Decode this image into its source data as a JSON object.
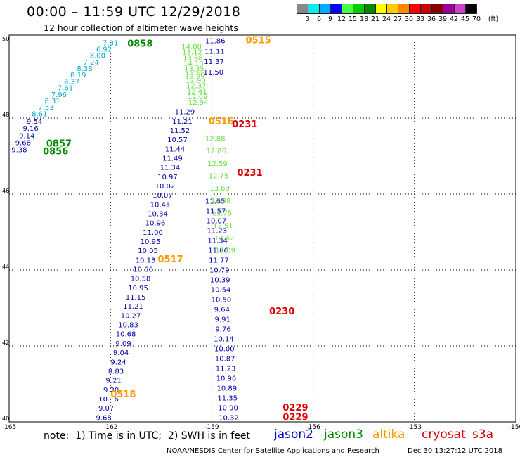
{
  "header": {
    "title": "00:00 – 11:59 UTC 12/29/2018",
    "subtitle": "12 hour collection of altimeter wave heights"
  },
  "colorbar": {
    "colors": [
      "#888888",
      "#00eeee",
      "#00aaff",
      "#0000ff",
      "#44ff44",
      "#00cc00",
      "#008800",
      "#ffff00",
      "#ffcc00",
      "#ff8800",
      "#ff0000",
      "#cc0000",
      "#880000",
      "#990099",
      "#cc44cc",
      "#000000"
    ],
    "labels": [
      "3",
      "6",
      "9",
      "12",
      "15",
      "18",
      "21",
      "24",
      "27",
      "30",
      "33",
      "36",
      "39",
      "42",
      "45",
      "70",
      "(ft)"
    ]
  },
  "axes": {
    "lon_range": [
      -165,
      -150
    ],
    "lat_range": [
      40,
      50
    ],
    "x_ticks": [
      -165,
      -162,
      -159,
      -156,
      -153,
      -150
    ],
    "y_ticks": [
      40,
      42,
      44,
      46,
      48,
      50
    ],
    "x_tick_labels": [
      "-165",
      "-162",
      "-159",
      "-156",
      "-153",
      "-150"
    ],
    "y_tick_labels": [
      "40",
      "42",
      "44",
      "46",
      "48",
      "50"
    ],
    "grid": true
  },
  "colors": {
    "jason2": "#0000aa",
    "jason3": "#008800",
    "altika": "#ff9900",
    "cryosat": "#dd0000",
    "s3a": "#cc0000",
    "wave_cyan": "#00aacc",
    "wave_light_green": "#66dd44"
  },
  "chart_data": {
    "type": "map",
    "rendering_note": "Wave height labels drawn at approximate lon/lat along satellite tracks",
    "tracks": [
      {
        "sat": "jason2",
        "color": "wave_cyan",
        "values": [
          "7.31",
          "6.92",
          "8.00",
          "7.24",
          "8.38",
          "8.19",
          "8.37",
          "7.61",
          "7.96",
          "8.31",
          "7.53",
          "8.61"
        ],
        "start": [
          -162.0,
          49.92
        ],
        "end": [
          -164.1,
          48.05
        ]
      },
      {
        "sat": "jason2",
        "color": "jason2",
        "values": [
          "9.54",
          "9.16",
          "9.14",
          "9.68",
          "9.38"
        ],
        "start": [
          -164.25,
          47.85
        ],
        "end": [
          -164.7,
          47.1
        ]
      },
      {
        "sat": "jason2",
        "color": "jason2",
        "values": [
          "11.29",
          "11.21",
          "11.52",
          "10.57",
          "11.44",
          "11.49",
          "11.34",
          "10.97",
          "10.02",
          "10.07",
          "10.45",
          "10.34",
          "10.96",
          "11.00",
          "10.95",
          "10.05",
          "10.13",
          "10.66",
          "10.58",
          "10.95",
          "11.15",
          "11.21",
          "10.27",
          "10.83",
          "10.68",
          "9.09",
          "9.04",
          "9.24",
          "8.83",
          "9.21",
          "9.20",
          "10.16",
          "9.07",
          "9.68"
        ],
        "start": [
          -159.8,
          48.1
        ],
        "end": [
          -162.2,
          40.05
        ]
      },
      {
        "sat": "jason2",
        "color": "jason2",
        "values": [
          "11.86",
          "11.11",
          "11.37",
          "11.50"
        ],
        "start": [
          -158.9,
          49.97
        ],
        "end": [
          -158.95,
          49.15
        ]
      },
      {
        "sat": "jason2",
        "color": "jason2",
        "values": [
          "11.65",
          "11.57",
          "10.07",
          "11.23",
          "11.34",
          "11.86",
          "11.77",
          "10.79",
          "10.39",
          "10.54",
          "10.50",
          "9.64",
          "9.91",
          "9.76",
          "10.14",
          "10.00",
          "10.87",
          "11.23",
          "10.96",
          "10.89",
          "11.35",
          "10.90",
          "10.32"
        ],
        "start": [
          -158.9,
          45.75
        ],
        "end": [
          -158.5,
          40.05
        ]
      },
      {
        "sat": "jason3",
        "color": "wave_light_green",
        "values": [
          "14.00",
          "13.12",
          "13.88",
          "14.13",
          "13.35",
          "13.60",
          "12.90",
          "12.37",
          "12.41",
          "12.09",
          "12.94"
        ],
        "start": [
          -159.6,
          49.82
        ],
        "end": [
          -159.4,
          48.35
        ]
      },
      {
        "sat": "jason3",
        "color": "wave_light_green",
        "values": [
          "12.88",
          "12.86",
          "12.59",
          "12.75",
          "13.69",
          "12.98",
          "13.75",
          "12.51",
          "12.42",
          "12.09"
        ],
        "start": [
          -158.9,
          47.4
        ],
        "end": [
          -158.6,
          44.45
        ]
      }
    ],
    "labels": [
      {
        "text": "0858",
        "color": "jason3",
        "lon": -161.5,
        "lat": 49.88
      },
      {
        "text": "0857",
        "color": "jason3",
        "lon": -163.9,
        "lat": 47.25
      },
      {
        "text": "0856",
        "color": "jason3",
        "lon": -164.0,
        "lat": 47.05
      },
      {
        "text": "0515",
        "color": "altika",
        "lon": -158.0,
        "lat": 49.97
      },
      {
        "text": "0516",
        "color": "altika",
        "lon": -159.1,
        "lat": 47.83
      },
      {
        "text": "0517",
        "color": "altika",
        "lon": -160.6,
        "lat": 44.2
      },
      {
        "text": "0518",
        "color": "altika",
        "lon": -162.0,
        "lat": 40.65
      },
      {
        "text": "0231",
        "color": "cryosat",
        "lon": -158.4,
        "lat": 47.76
      },
      {
        "text": "0231",
        "color": "cryosat",
        "lon": -158.25,
        "lat": 46.48
      },
      {
        "text": "0230",
        "color": "cryosat",
        "lon": -157.3,
        "lat": 42.83
      },
      {
        "text": "0229",
        "color": "cryosat",
        "lon": -156.9,
        "lat": 40.3
      },
      {
        "text": "0229",
        "color": "cryosat",
        "lon": -156.9,
        "lat": 40.05
      }
    ]
  },
  "footer": {
    "note": "note:  1) Time is in UTC;  2) SWH is in feet",
    "legend": [
      {
        "label": "jason2",
        "color": "#0000cc"
      },
      {
        "label": "jason3",
        "color": "#008800"
      },
      {
        "label": "altika",
        "color": "#ff9900"
      },
      {
        "label": "cryosat",
        "color": "#dd0000"
      },
      {
        "label": "s3a",
        "color": "#cc0000"
      }
    ],
    "credit": "NOAA/NESDIS Center for Satellite Applications and Research",
    "timestamp": "Dec 30 13:27:12 UTC 2018"
  }
}
